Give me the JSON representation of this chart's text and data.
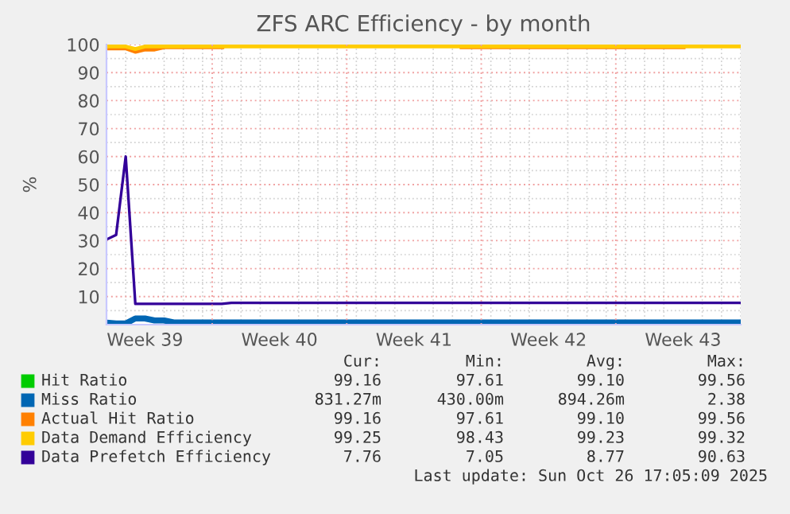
{
  "chart_data": {
    "type": "line",
    "title": "ZFS ARC Efficiency - by month",
    "ylabel": "%",
    "categories": [
      null,
      null,
      null,
      null,
      "Week 39",
      null,
      null,
      null,
      null,
      null,
      null,
      null,
      null,
      null,
      null,
      null,
      null,
      null,
      "Week 40",
      null,
      null,
      null,
      null,
      null,
      null,
      null,
      null,
      null,
      null,
      null,
      null,
      null,
      "Week 41",
      null,
      null,
      null,
      null,
      null,
      null,
      null,
      null,
      null,
      null,
      null,
      null,
      null,
      "Week 42",
      null,
      null,
      null,
      null,
      null,
      null,
      null,
      null,
      null,
      null,
      null,
      null,
      null,
      "Week 43",
      null,
      null,
      null,
      null,
      null,
      null
    ],
    "ylim": [
      0,
      100
    ],
    "yticks": [
      10,
      20,
      30,
      40,
      50,
      60,
      70,
      80,
      90,
      100
    ],
    "grid": true,
    "legend": "bottom",
    "marker": "none",
    "line_style": "solid",
    "series": [
      {
        "name": "Hit Ratio",
        "color": "#00cc00",
        "values": [
          null,
          null,
          null,
          null,
          null,
          null,
          null,
          null,
          null,
          null,
          null,
          null,
          null,
          null,
          null,
          null,
          null,
          null,
          null,
          null,
          null,
          null,
          null,
          null,
          null,
          null,
          null,
          null,
          null,
          null,
          null,
          null,
          null,
          null,
          null,
          null,
          null,
          null,
          null,
          null,
          null,
          null,
          null,
          null,
          null,
          null,
          null,
          null,
          null,
          null,
          null,
          null,
          null,
          null,
          null,
          null,
          null,
          null,
          null,
          null,
          null,
          null,
          null,
          null,
          null,
          null,
          null
        ]
      },
      {
        "name": "Miss Ratio",
        "color": "#0066b3",
        "values": [
          0.7,
          0.4,
          0.4,
          2.2,
          2.2,
          1.5,
          1.5,
          0.8,
          0.8,
          0.8,
          0.8,
          0.8,
          0.8,
          0.8,
          0.8,
          0.8,
          0.8,
          0.8,
          0.8,
          0.8,
          0.8,
          0.8,
          0.8,
          0.8,
          0.8,
          0.8,
          0.8,
          0.8,
          0.8,
          0.8,
          0.8,
          0.8,
          0.8,
          0.8,
          0.8,
          0.8,
          0.8,
          0.8,
          0.8,
          0.8,
          0.8,
          0.8,
          0.8,
          0.8,
          0.8,
          0.8,
          0.8,
          0.8,
          0.8,
          0.8,
          0.8,
          0.8,
          0.8,
          0.8,
          0.8,
          0.8,
          0.8,
          0.8,
          0.8,
          0.8,
          0.8,
          0.8,
          0.8,
          0.8,
          0.8,
          0.8,
          0.8
        ]
      },
      {
        "name": "Actual Hit Ratio",
        "color": "#ff8000",
        "values": [
          98.8,
          98.8,
          98.8,
          97.6,
          98.4,
          98.4,
          99.2,
          99.2,
          99.2,
          99.2,
          99.2,
          99.2,
          99.2,
          null,
          null,
          null,
          null,
          null,
          null,
          null,
          null,
          null,
          null,
          null,
          null,
          null,
          null,
          null,
          null,
          null,
          null,
          null,
          null,
          null,
          null,
          null,
          null,
          99.2,
          99.2,
          99.2,
          99.2,
          99.2,
          99.2,
          99.2,
          99.2,
          99.2,
          99.2,
          99.2,
          99.2,
          99.2,
          99.2,
          99.2,
          99.2,
          99.2,
          99.2,
          99.2,
          99.2,
          99.2,
          99.2,
          99.2,
          99.2,
          null,
          null,
          null,
          null,
          null,
          null
        ]
      },
      {
        "name": "Data Demand Efficiency",
        "color": "#ffcc00",
        "values": [
          99.3,
          99.3,
          99.3,
          98.4,
          99.3,
          99.3,
          99.3,
          99.3,
          99.3,
          99.3,
          99.3,
          99.3,
          99.3,
          99.3,
          99.3,
          99.3,
          99.3,
          99.3,
          99.3,
          99.3,
          99.3,
          99.3,
          99.3,
          99.3,
          99.3,
          99.3,
          99.3,
          99.3,
          99.3,
          99.3,
          99.3,
          99.3,
          99.3,
          99.3,
          99.3,
          99.3,
          99.3,
          99.3,
          99.3,
          99.3,
          99.3,
          99.3,
          99.3,
          99.3,
          99.3,
          99.3,
          99.3,
          99.3,
          99.3,
          99.3,
          99.3,
          99.3,
          99.3,
          99.3,
          99.3,
          99.3,
          99.3,
          99.3,
          99.3,
          99.3,
          99.3,
          99.3,
          99.3,
          99.3,
          99.3,
          99.3,
          99.3
        ]
      },
      {
        "name": "Data Prefetch Efficiency",
        "color": "#330099",
        "values": [
          30.4,
          32,
          60,
          7.4,
          7.4,
          7.4,
          7.4,
          7.4,
          7.4,
          7.4,
          7.4,
          7.4,
          7.4,
          7.8,
          7.8,
          7.8,
          7.8,
          7.8,
          7.8,
          7.8,
          7.8,
          7.8,
          7.8,
          7.8,
          7.8,
          7.8,
          7.8,
          7.8,
          7.8,
          7.8,
          7.8,
          7.8,
          7.8,
          7.8,
          7.8,
          7.8,
          7.8,
          7.8,
          7.8,
          7.8,
          7.8,
          7.8,
          7.8,
          7.8,
          7.8,
          7.8,
          7.8,
          7.8,
          7.8,
          7.8,
          7.8,
          7.8,
          7.8,
          7.8,
          7.8,
          7.8,
          7.8,
          7.8,
          7.8,
          7.8,
          7.8,
          7.8,
          7.8,
          7.8,
          7.8,
          7.8,
          7.8
        ]
      }
    ],
    "annotations": [
      "Cur:",
      "Min:",
      "Avg:",
      "Max:",
      "99.16",
      "97.61",
      "99.10",
      "99.56",
      "831.27m",
      "430.00m",
      "894.26m",
      "2.38",
      "99.16",
      "97.61",
      "99.10",
      "99.56",
      "99.25",
      "98.43",
      "99.23",
      "99.32",
      "7.76",
      "7.05",
      "8.77",
      "90.63",
      "Last update: Sun Oct 26 17:05:09 2025"
    ]
  }
}
